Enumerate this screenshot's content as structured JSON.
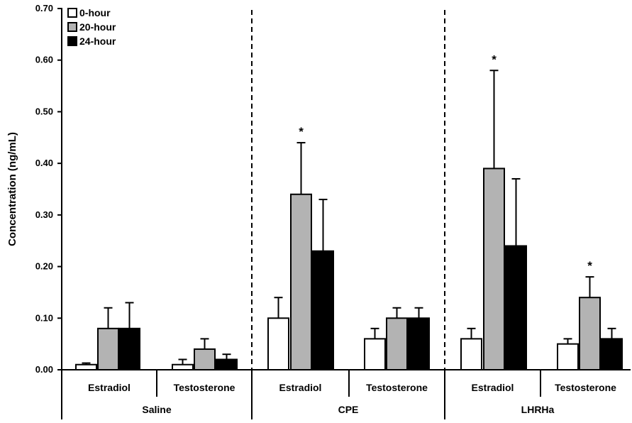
{
  "chart_data": {
    "type": "bar",
    "ylabel": "Concentration (ng/mL)",
    "ylim": [
      0,
      0.7
    ],
    "yticks": [
      "0.00",
      "0.10",
      "0.20",
      "0.30",
      "0.40",
      "0.50",
      "0.60",
      "0.70"
    ],
    "grid": false,
    "legend_position": "top-left",
    "series": [
      {
        "name": "0-hour",
        "color": "#ffffff"
      },
      {
        "name": "20-hour",
        "color": "#b3b3b3"
      },
      {
        "name": "24-hour",
        "color": "#000000"
      }
    ],
    "groups": [
      {
        "name": "Saline",
        "subgroups": [
          {
            "name": "Estradiol",
            "values": [
              0.01,
              0.08,
              0.08
            ],
            "errors": [
              0.003,
              0.04,
              0.05
            ],
            "significant": [
              false,
              false,
              false
            ]
          },
          {
            "name": "Testosterone",
            "values": [
              0.01,
              0.04,
              0.02
            ],
            "errors": [
              0.01,
              0.02,
              0.01
            ],
            "significant": [
              false,
              false,
              false
            ]
          }
        ]
      },
      {
        "name": "CPE",
        "subgroups": [
          {
            "name": "Estradiol",
            "values": [
              0.1,
              0.34,
              0.23
            ],
            "errors": [
              0.04,
              0.1,
              0.1
            ],
            "significant": [
              false,
              true,
              false
            ]
          },
          {
            "name": "Testosterone",
            "values": [
              0.06,
              0.1,
              0.1
            ],
            "errors": [
              0.02,
              0.02,
              0.02
            ],
            "significant": [
              false,
              false,
              false
            ]
          }
        ]
      },
      {
        "name": "LHRHa",
        "subgroups": [
          {
            "name": "Estradiol",
            "values": [
              0.06,
              0.39,
              0.24
            ],
            "errors": [
              0.02,
              0.19,
              0.13
            ],
            "significant": [
              false,
              true,
              false
            ]
          },
          {
            "name": "Testosterone",
            "values": [
              0.05,
              0.14,
              0.06
            ],
            "errors": [
              0.01,
              0.04,
              0.02
            ],
            "significant": [
              false,
              true,
              false
            ]
          }
        ]
      }
    ],
    "significance_marker": "*"
  }
}
